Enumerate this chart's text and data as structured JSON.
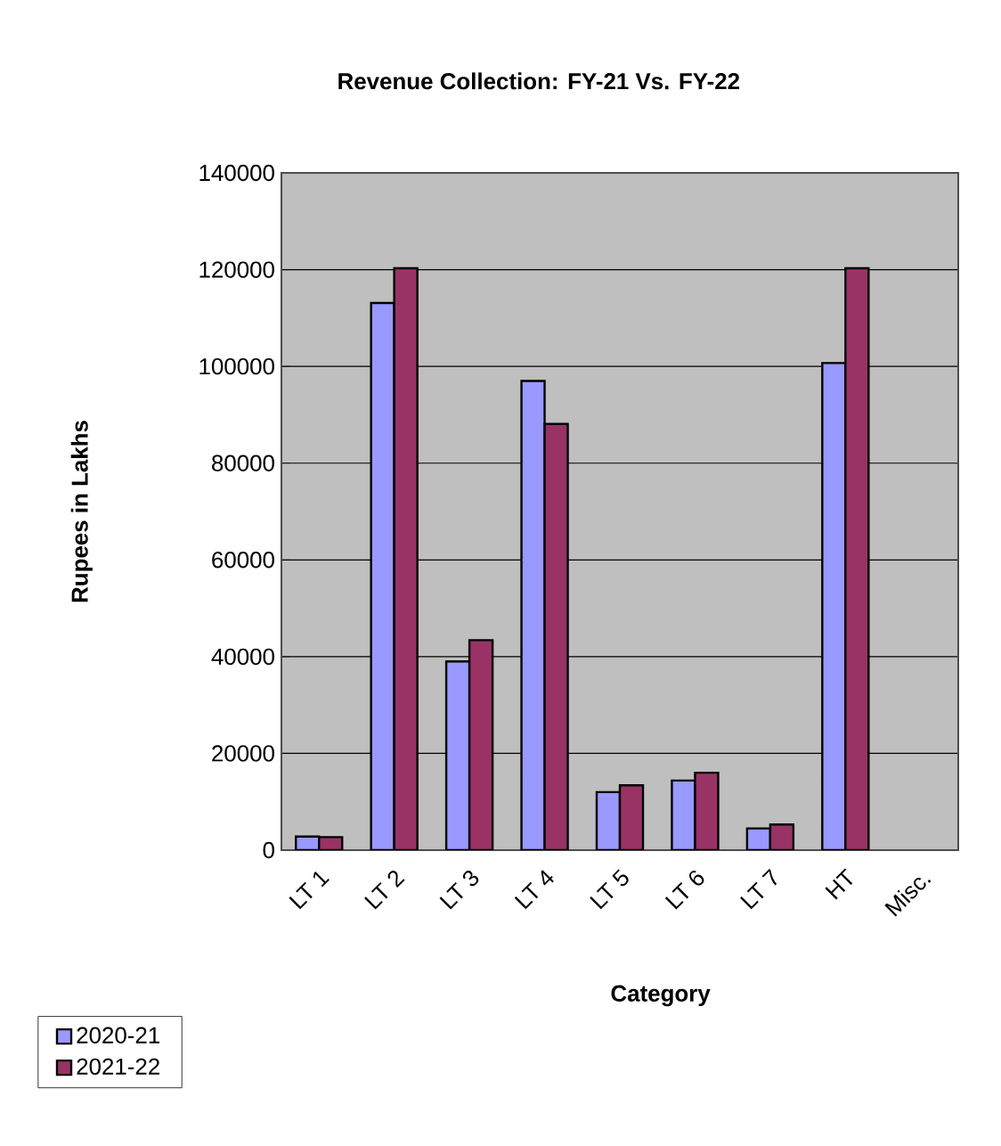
{
  "chart_data": {
    "type": "bar",
    "title": "Revenue Collection: FY-21 Vs. FY-22",
    "xlabel": "Category",
    "ylabel": "Rupees in Lakhs",
    "categories": [
      "LT 1",
      "LT 2",
      "LT 3",
      "LT 4",
      "LT 5",
      "LT 6",
      "LT 7",
      "HT",
      "Misc."
    ],
    "series": [
      {
        "name": "2020-21",
        "color": "#9999ff",
        "values": [
          2800,
          113100,
          39000,
          97000,
          12000,
          14400,
          4500,
          100700,
          null
        ]
      },
      {
        "name": "2021-22",
        "color": "#993366",
        "values": [
          2700,
          120300,
          43400,
          88100,
          13400,
          16000,
          5300,
          120300,
          null
        ]
      }
    ],
    "ylim": [
      0,
      140000
    ],
    "yticks": [
      0,
      20000,
      40000,
      60000,
      80000,
      100000,
      120000,
      140000
    ],
    "grid": "y",
    "legend": "bottom left"
  }
}
